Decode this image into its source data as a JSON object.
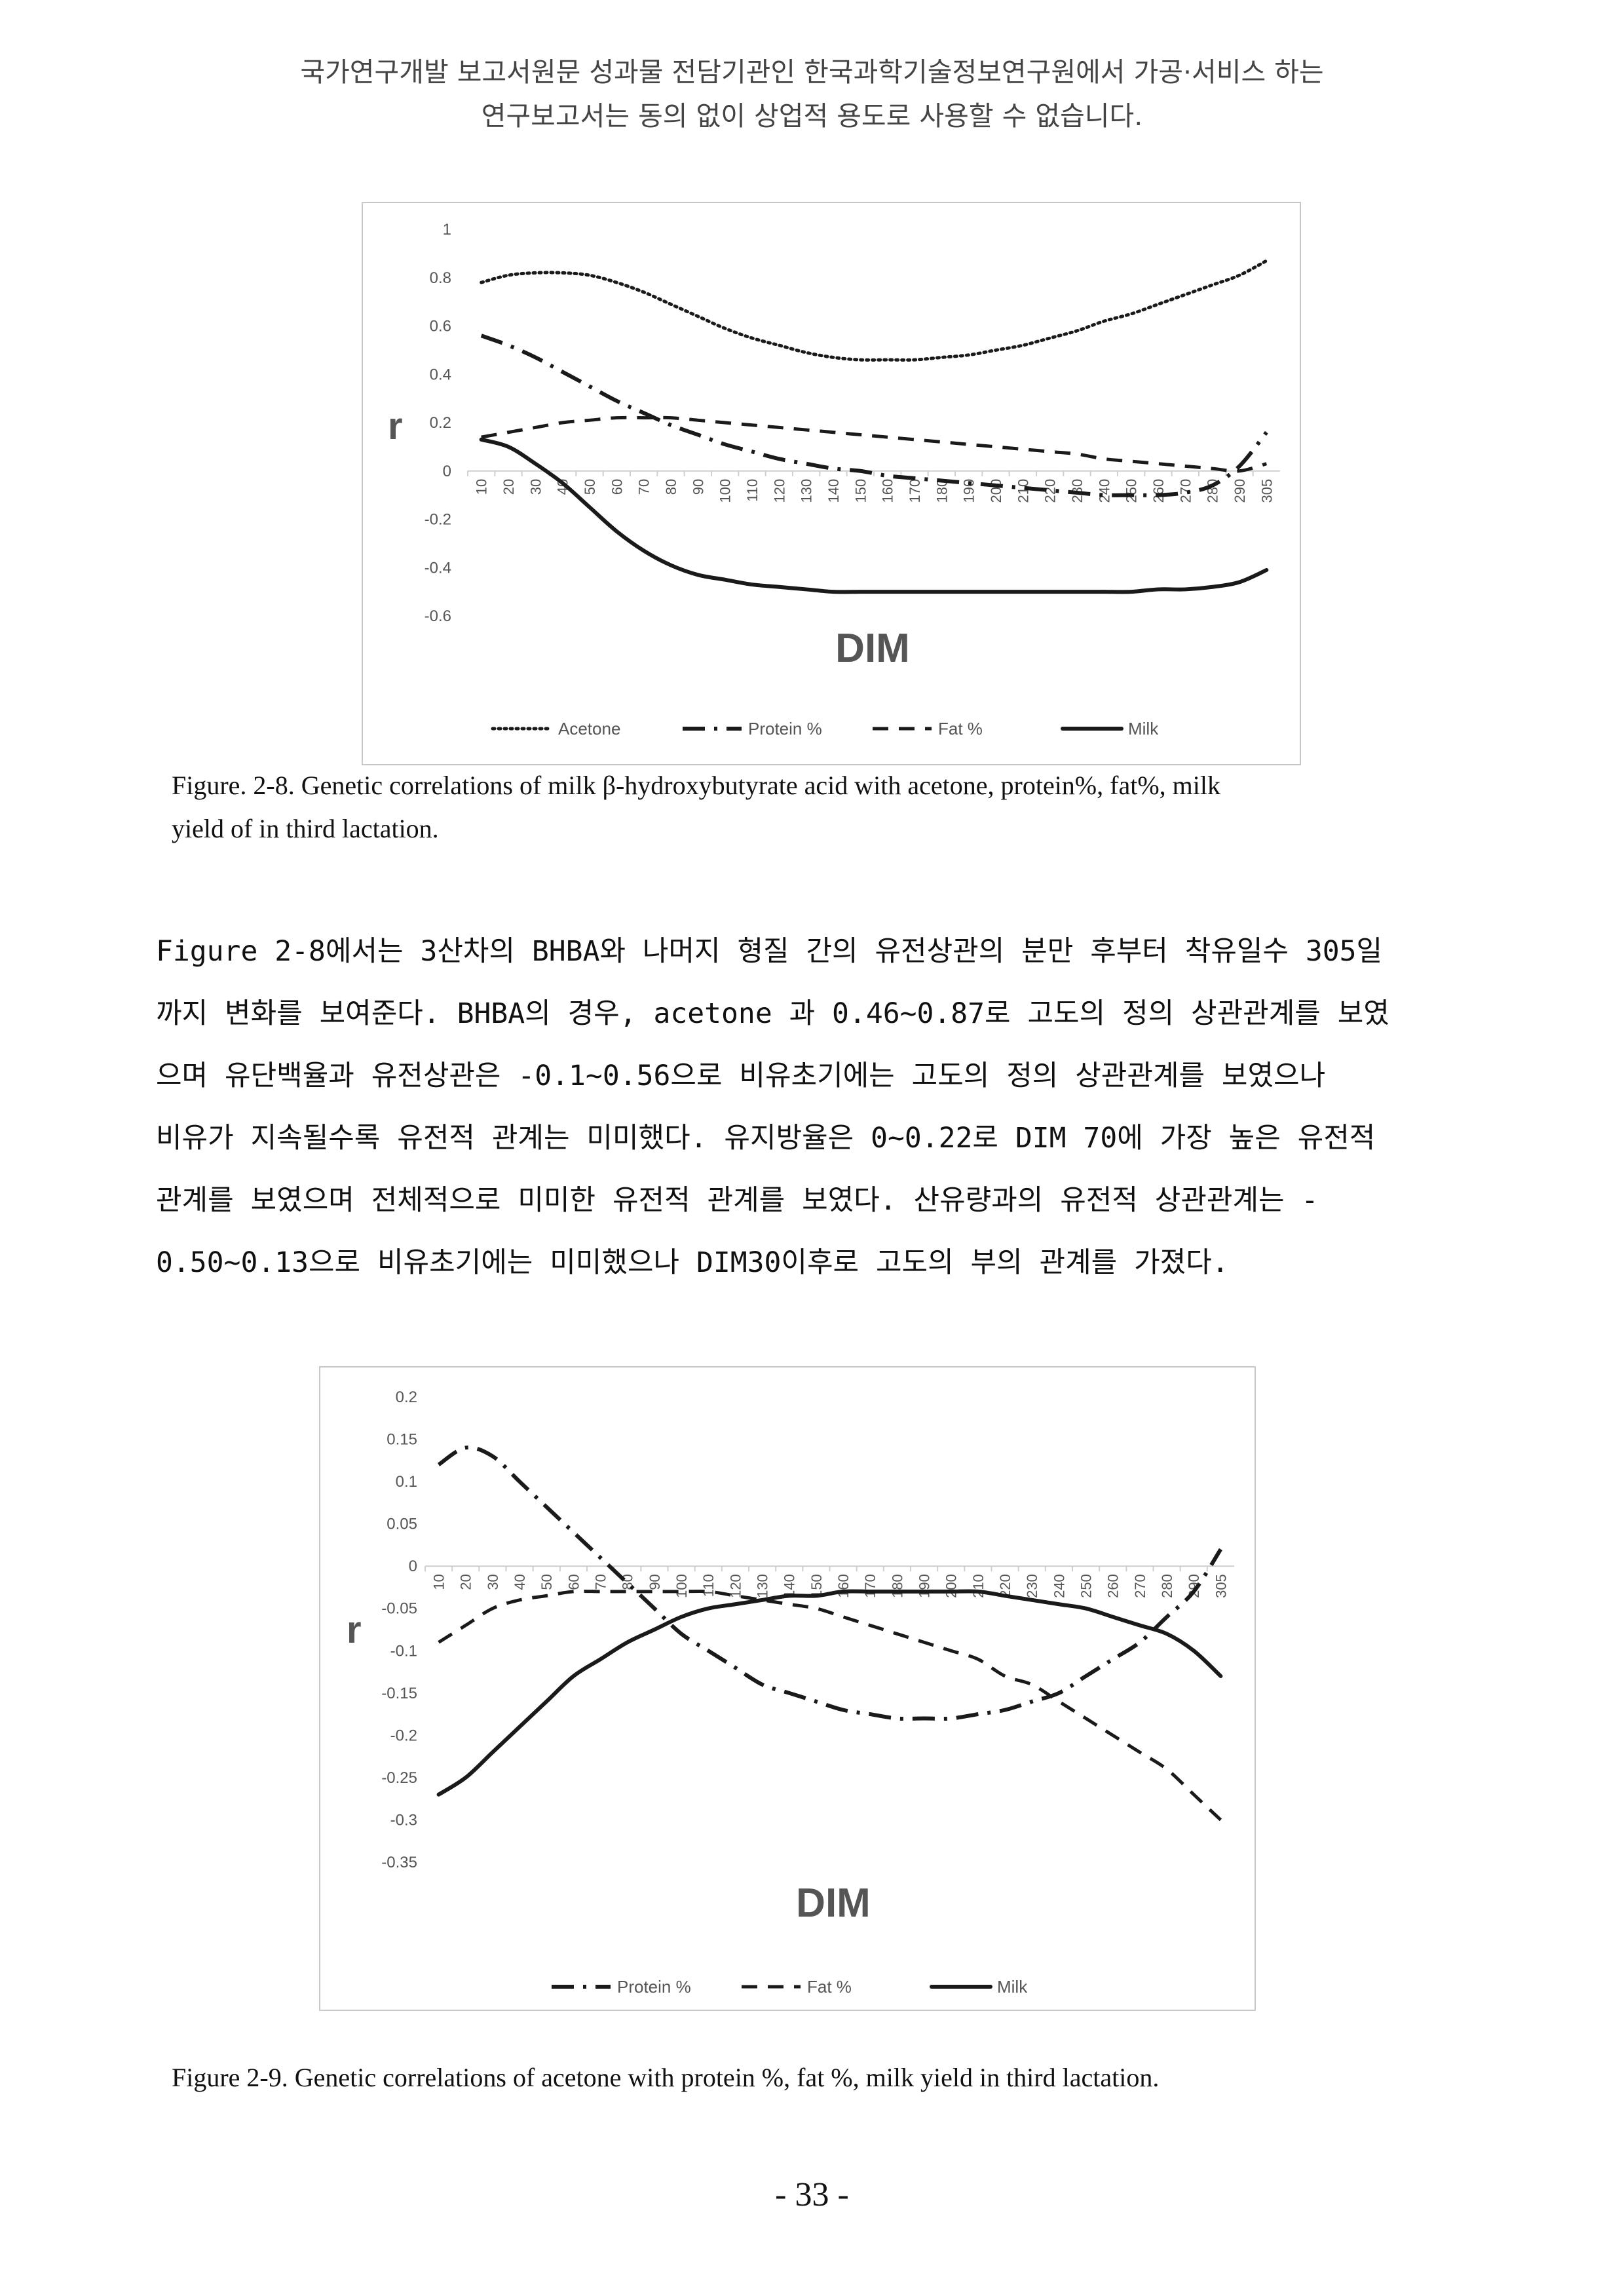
{
  "header": {
    "line1": "국가연구개발 보고서원문 성과물 전담기관인 한국과학기술정보연구원에서 가공·서비스 하는",
    "line2": "연구보고서는 동의 없이 상업적 용도로 사용할 수 없습니다."
  },
  "figure1": {
    "caption_line1": "Figure. 2-8. Genetic correlations of milk β-hydroxybutyrate acid with acetone, protein%,  fat%, milk",
    "caption_line2": "yield of in third lactation."
  },
  "paragraph": {
    "lines": [
      "Figure 2-8에서는 3산차의 BHBA와 나머지 형질 간의 유전상관의 분만 후부터 착유일수 305일",
      "까지 변화를 보여준다. BHBA의 경우,  acetone 과 0.46~0.87로 고도의 정의 상관관계를 보였",
      "으며 유단백율과 유전상관은 -0.1~0.56으로 비유초기에는 고도의 정의 상관관계를 보였으나",
      "비유가 지속될수록 유전적 관계는 미미했다. 유지방율은 0~0.22로 DIM 70에 가장 높은 유전적",
      "관계를 보였으며 전체적으로 미미한 유전적 관계를 보였다. 산유량과의 유전적 상관관계는 -",
      "0.50~0.13으로 비유초기에는 미미했으나 DIM30이후로 고도의 부의 관계를 가졌다."
    ]
  },
  "figure2": {
    "caption": "Figure 2-9. Genetic correlations of acetone with protein %,  fat %, milk yield in third lactation."
  },
  "page_number": "- 33 -",
  "chart_data": [
    {
      "type": "line",
      "title": "",
      "xlabel": "DIM",
      "ylabel": "r",
      "ylim": [
        -0.6,
        1
      ],
      "yticks": [
        1,
        0.8,
        0.6,
        0.4,
        0.2,
        0,
        -0.2,
        -0.4,
        -0.6
      ],
      "ytick_labels": [
        "1",
        "0.8",
        "0.6",
        "0.4",
        "0.2",
        "0",
        "-0.2",
        "-0.4",
        "-0.6"
      ],
      "categories": [
        "10",
        "20",
        "30",
        "40",
        "50",
        "60",
        "70",
        "80",
        "90",
        "100",
        "110",
        "120",
        "130",
        "140",
        "150",
        "160",
        "170",
        "180",
        "190",
        "200",
        "210",
        "220",
        "230",
        "240",
        "250",
        "260",
        "270",
        "280",
        "290",
        "305"
      ],
      "legend_position": "bottom",
      "grid": false,
      "series": [
        {
          "name": "Acetone",
          "style": "dotted",
          "values": [
            0.78,
            0.81,
            0.82,
            0.82,
            0.81,
            0.78,
            0.74,
            0.69,
            0.64,
            0.59,
            0.55,
            0.52,
            0.49,
            0.47,
            0.46,
            0.46,
            0.46,
            0.47,
            0.48,
            0.5,
            0.52,
            0.55,
            0.58,
            0.62,
            0.65,
            0.69,
            0.73,
            0.77,
            0.81,
            0.87
          ]
        },
        {
          "name": "Protein %",
          "style": "dashdot",
          "values": [
            0.56,
            0.52,
            0.47,
            0.41,
            0.35,
            0.29,
            0.24,
            0.19,
            0.15,
            0.11,
            0.08,
            0.05,
            0.03,
            0.01,
            0.0,
            -0.02,
            -0.03,
            -0.04,
            -0.05,
            -0.06,
            -0.07,
            -0.08,
            -0.09,
            -0.1,
            -0.1,
            -0.1,
            -0.09,
            -0.06,
            0.02,
            0.16
          ]
        },
        {
          "name": "Fat %",
          "style": "dashed",
          "values": [
            0.14,
            0.16,
            0.18,
            0.2,
            0.21,
            0.22,
            0.22,
            0.22,
            0.21,
            0.2,
            0.19,
            0.18,
            0.17,
            0.16,
            0.15,
            0.14,
            0.13,
            0.12,
            0.11,
            0.1,
            0.09,
            0.08,
            0.07,
            0.05,
            0.04,
            0.03,
            0.02,
            0.01,
            0.0,
            0.03
          ]
        },
        {
          "name": "Milk",
          "style": "solid",
          "values": [
            0.13,
            0.1,
            0.03,
            -0.05,
            -0.15,
            -0.25,
            -0.33,
            -0.39,
            -0.43,
            -0.45,
            -0.47,
            -0.48,
            -0.49,
            -0.5,
            -0.5,
            -0.5,
            -0.5,
            -0.5,
            -0.5,
            -0.5,
            -0.5,
            -0.5,
            -0.5,
            -0.5,
            -0.5,
            -0.49,
            -0.49,
            -0.48,
            -0.46,
            -0.41
          ]
        }
      ]
    },
    {
      "type": "line",
      "title": "",
      "xlabel": "DIM",
      "ylabel": "r",
      "ylim": [
        -0.35,
        0.2
      ],
      "yticks": [
        0.2,
        0.15,
        0.1,
        0.05,
        0,
        -0.05,
        -0.1,
        -0.15,
        -0.2,
        -0.25,
        -0.3,
        -0.35
      ],
      "ytick_labels": [
        "0.2",
        "0.15",
        "0.1",
        "0.05",
        "0",
        "-0.05",
        "-0.1",
        "-0.15",
        "-0.2",
        "-0.25",
        "-0.3",
        "-0.35"
      ],
      "categories": [
        "10",
        "20",
        "30",
        "40",
        "50",
        "60",
        "70",
        "80",
        "90",
        "100",
        "110",
        "120",
        "130",
        "140",
        "150",
        "160",
        "170",
        "180",
        "190",
        "200",
        "210",
        "220",
        "230",
        "240",
        "250",
        "260",
        "270",
        "280",
        "290",
        "305"
      ],
      "legend_position": "bottom",
      "grid": false,
      "series": [
        {
          "name": "Protein %",
          "style": "dashdot",
          "values": [
            0.12,
            0.14,
            0.13,
            0.1,
            0.07,
            0.04,
            0.01,
            -0.02,
            -0.05,
            -0.08,
            -0.1,
            -0.12,
            -0.14,
            -0.15,
            -0.16,
            -0.17,
            -0.175,
            -0.18,
            -0.18,
            -0.18,
            -0.175,
            -0.17,
            -0.16,
            -0.15,
            -0.13,
            -0.11,
            -0.09,
            -0.06,
            -0.03,
            0.02
          ]
        },
        {
          "name": "Fat %",
          "style": "dashed",
          "values": [
            -0.09,
            -0.07,
            -0.05,
            -0.04,
            -0.035,
            -0.03,
            -0.03,
            -0.03,
            -0.03,
            -0.03,
            -0.03,
            -0.035,
            -0.04,
            -0.045,
            -0.05,
            -0.06,
            -0.07,
            -0.08,
            -0.09,
            -0.1,
            -0.11,
            -0.13,
            -0.14,
            -0.16,
            -0.18,
            -0.2,
            -0.22,
            -0.24,
            -0.27,
            -0.3
          ]
        },
        {
          "name": "Milk",
          "style": "solid",
          "values": [
            -0.27,
            -0.25,
            -0.22,
            -0.19,
            -0.16,
            -0.13,
            -0.11,
            -0.09,
            -0.075,
            -0.06,
            -0.05,
            -0.045,
            -0.04,
            -0.035,
            -0.035,
            -0.03,
            -0.03,
            -0.03,
            -0.03,
            -0.03,
            -0.03,
            -0.035,
            -0.04,
            -0.045,
            -0.05,
            -0.06,
            -0.07,
            -0.08,
            -0.1,
            -0.13
          ]
        }
      ]
    }
  ]
}
